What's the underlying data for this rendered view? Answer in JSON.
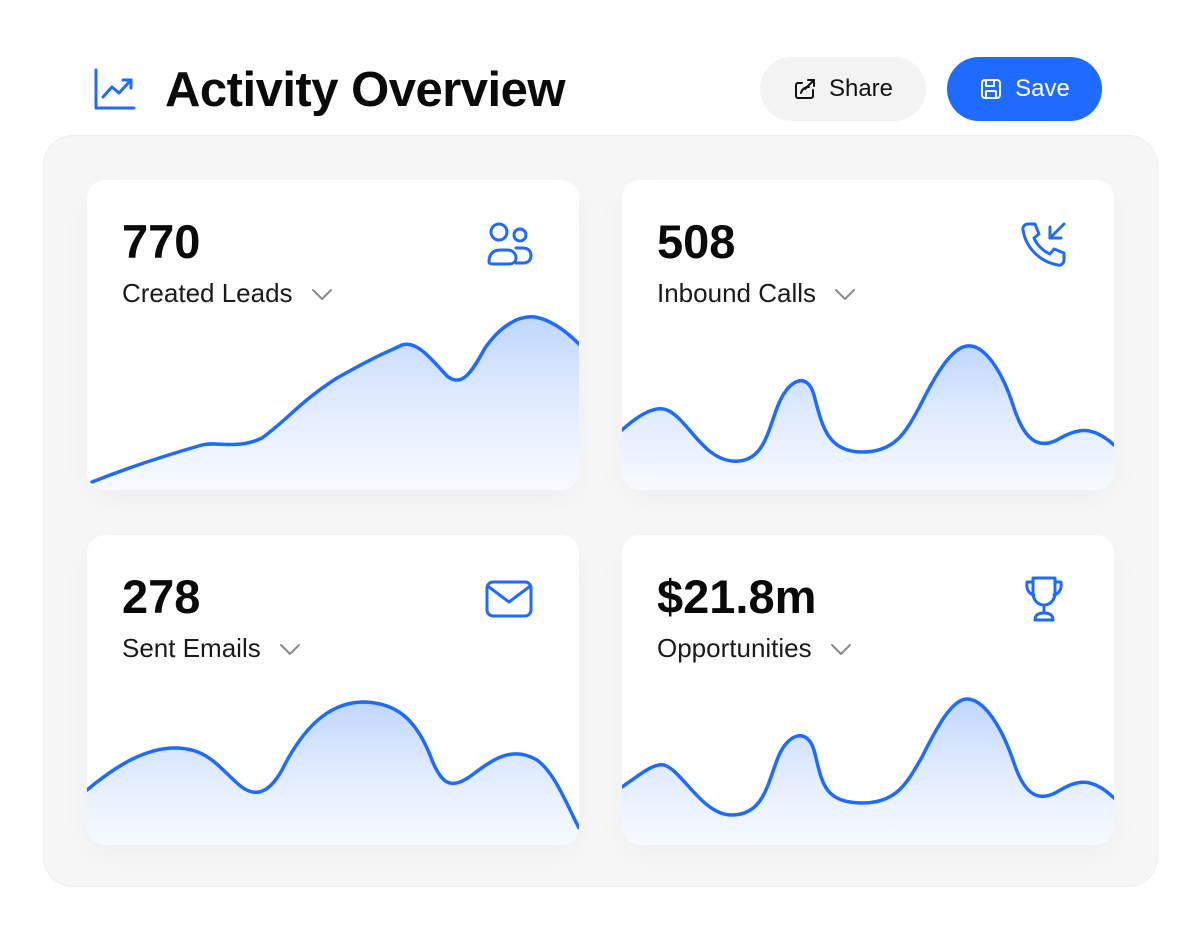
{
  "header": {
    "title": "Activity Overview",
    "title_icon": "trend-chart-icon",
    "share_label": "Share",
    "save_label": "Save"
  },
  "colors": {
    "accent": "#1f6bff",
    "area_fill": "#cfe0ff",
    "text": "#0a0a0a"
  },
  "cards": [
    {
      "value": "770",
      "label": "Created Leads",
      "icon": "users-icon"
    },
    {
      "value": "508",
      "label": "Inbound Calls",
      "icon": "incoming-call-icon"
    },
    {
      "value": "278",
      "label": "Sent Emails",
      "icon": "mail-icon"
    },
    {
      "value": "$21.8m",
      "label": "Opportunities",
      "icon": "trophy-icon"
    }
  ]
}
